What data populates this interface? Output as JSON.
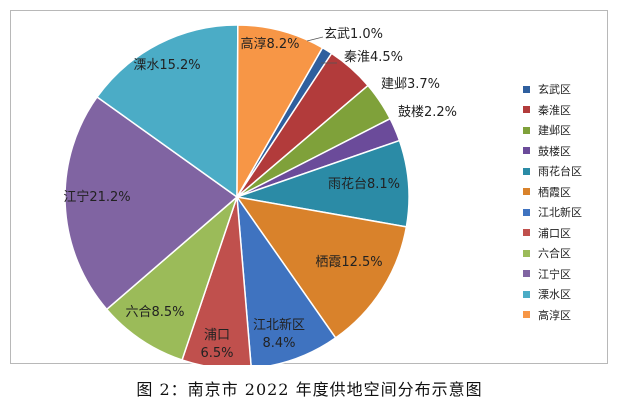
{
  "caption": "图 2：南京市 2022 年度供地空间分布示意图",
  "chart_data": {
    "type": "pie",
    "title": "",
    "legend_position": "right",
    "slices": [
      {
        "name": "玄武区",
        "label": "玄武1.0%",
        "value": 1.0,
        "color": "#2f5f9e"
      },
      {
        "name": "秦淮区",
        "label": "秦淮4.5%",
        "value": 4.5,
        "color": "#b23b3b"
      },
      {
        "name": "建邺区",
        "label": "建邺3.7%",
        "value": 3.7,
        "color": "#7fa13a"
      },
      {
        "name": "鼓楼区",
        "label": "鼓楼2.2%",
        "value": 2.2,
        "color": "#6b4b9a"
      },
      {
        "name": "雨花台区",
        "label": "雨花台8.1%",
        "value": 8.1,
        "color": "#2b8ba6"
      },
      {
        "name": "栖霞区",
        "label": "栖霞12.5%",
        "value": 12.5,
        "color": "#d9822b"
      },
      {
        "name": "江北新区",
        "label": "江北新区\n8.4%",
        "value": 8.4,
        "color": "#3f73c0"
      },
      {
        "name": "浦口区",
        "label": "浦口\n6.5%",
        "value": 6.5,
        "color": "#c0504d"
      },
      {
        "name": "六合区",
        "label": "六合8.5%",
        "value": 8.5,
        "color": "#9bbb59"
      },
      {
        "name": "江宁区",
        "label": "江宁21.2%",
        "value": 21.2,
        "color": "#8064a2"
      },
      {
        "name": "溧水区",
        "label": "溧水15.2%",
        "value": 15.2,
        "color": "#4bacc6"
      },
      {
        "name": "高淳区",
        "label": "高淳8.2%",
        "value": 8.2,
        "color": "#f79646"
      }
    ]
  }
}
